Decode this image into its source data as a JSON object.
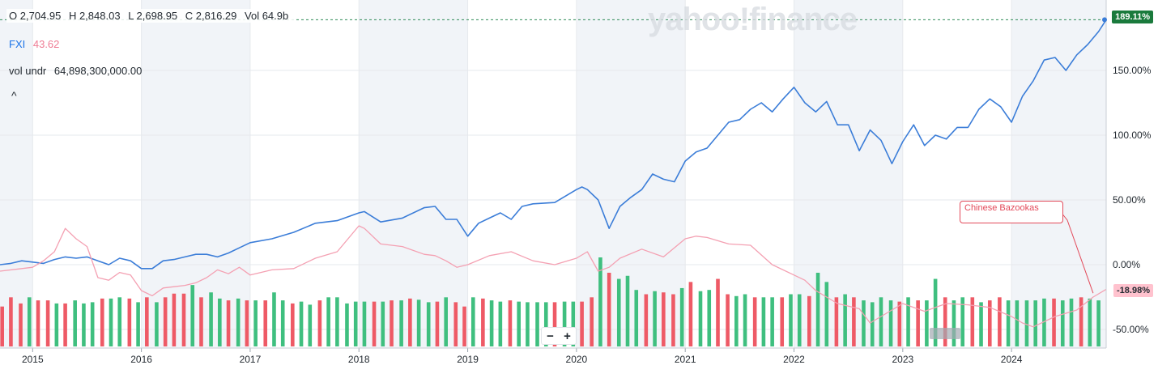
{
  "legend_ohlc": {
    "open": "O 2,704.95",
    "high": "H 2,848.03",
    "low": "L 2,698.95",
    "close": "C 2,816.29",
    "vol": "Vol 64.9b"
  },
  "symbol": {
    "name": "FXI",
    "price": "43.62"
  },
  "volume_legend": {
    "label": "vol undr",
    "value": "64,898,300,000.00"
  },
  "collapse_glyph": "^",
  "watermark": "yahoo!finance",
  "zoom": {
    "minus": "−",
    "plus": "+"
  },
  "annotation": {
    "text": "Chinese Bazookas"
  },
  "price_tags": {
    "main": "189.11%",
    "compare": "-18.98%"
  },
  "colors": {
    "main_line": "#3b7dd8",
    "compare_line": "#f4a0b2",
    "vol_up": "#3fbf7f",
    "vol_down": "#ee5a66",
    "band": "#f1f4f8",
    "tag_green": "#1a7a3c",
    "tag_pink": "#ffc2ce",
    "annotation": "#e34a5a"
  },
  "chart_data": {
    "type": "line",
    "y_axis": {
      "ticks": [
        "150.00%",
        "100.00%",
        "50.00%",
        "0.00%",
        "-50.00%"
      ],
      "tick_values": [
        150,
        100,
        50,
        0,
        -50
      ],
      "range": [
        -55,
        195
      ],
      "position": "right",
      "unit": "%"
    },
    "x_axis": {
      "tick_labels": [
        "2015",
        "2016",
        "2017",
        "2018",
        "2019",
        "2020",
        "2021",
        "2022",
        "2023",
        "2024"
      ],
      "range": [
        2014.7,
        2024.87
      ]
    },
    "grid": true,
    "series": [
      {
        "name": "",
        "style": "main",
        "x": [
          2014.7,
          2014.8,
          2014.9,
          2015.0,
          2015.1,
          2015.2,
          2015.3,
          2015.4,
          2015.5,
          2015.6,
          2015.7,
          2015.8,
          2015.9,
          2016.0,
          2016.1,
          2016.2,
          2016.3,
          2016.4,
          2016.5,
          2016.6,
          2016.7,
          2016.8,
          2016.9,
          2017.0,
          2017.2,
          2017.4,
          2017.6,
          2017.8,
          2018.0,
          2018.05,
          2018.2,
          2018.4,
          2018.6,
          2018.7,
          2018.8,
          2018.9,
          2019.0,
          2019.1,
          2019.2,
          2019.3,
          2019.4,
          2019.5,
          2019.6,
          2019.8,
          2020.0,
          2020.05,
          2020.1,
          2020.2,
          2020.3,
          2020.4,
          2020.5,
          2020.6,
          2020.7,
          2020.8,
          2020.9,
          2021.0,
          2021.1,
          2021.2,
          2021.3,
          2021.4,
          2021.5,
          2021.6,
          2021.7,
          2021.8,
          2021.9,
          2022.0,
          2022.1,
          2022.2,
          2022.3,
          2022.4,
          2022.5,
          2022.6,
          2022.7,
          2022.8,
          2022.9,
          2023.0,
          2023.1,
          2023.2,
          2023.3,
          2023.4,
          2023.5,
          2023.6,
          2023.7,
          2023.8,
          2023.9,
          2024.0,
          2024.1,
          2024.2,
          2024.3,
          2024.4,
          2024.5,
          2024.6,
          2024.7,
          2024.8,
          2024.87
        ],
        "values": [
          0,
          1,
          3,
          2,
          1,
          4,
          6,
          5,
          6,
          3,
          0,
          5,
          3,
          -3,
          -3,
          3,
          4,
          6,
          8,
          8,
          6,
          9,
          13,
          17,
          20,
          25,
          32,
          34,
          40,
          41,
          33,
          36,
          44,
          45,
          35,
          35,
          22,
          32,
          36,
          40,
          35,
          45,
          47,
          48,
          58,
          60,
          58,
          50,
          28,
          45,
          52,
          58,
          70,
          66,
          64,
          80,
          87,
          90,
          100,
          110,
          112,
          120,
          125,
          118,
          128,
          137,
          125,
          118,
          126,
          108,
          108,
          88,
          104,
          96,
          78,
          95,
          108,
          92,
          100,
          97,
          106,
          106,
          120,
          128,
          122,
          110,
          130,
          142,
          158,
          160,
          150,
          162,
          170,
          180,
          189.11
        ]
      },
      {
        "name": "",
        "style": "compare",
        "x": [
          2014.7,
          2014.9,
          2015.0,
          2015.1,
          2015.2,
          2015.3,
          2015.4,
          2015.5,
          2015.6,
          2015.7,
          2015.8,
          2015.9,
          2016.0,
          2016.1,
          2016.2,
          2016.3,
          2016.4,
          2016.5,
          2016.6,
          2016.7,
          2016.8,
          2016.9,
          2017.0,
          2017.2,
          2017.4,
          2017.6,
          2017.8,
          2018.0,
          2018.05,
          2018.2,
          2018.4,
          2018.6,
          2018.7,
          2018.8,
          2018.9,
          2019.0,
          2019.2,
          2019.4,
          2019.6,
          2019.8,
          2020.0,
          2020.1,
          2020.2,
          2020.3,
          2020.4,
          2020.6,
          2020.8,
          2021.0,
          2021.1,
          2021.2,
          2021.4,
          2021.6,
          2021.8,
          2022.0,
          2022.1,
          2022.2,
          2022.3,
          2022.4,
          2022.5,
          2022.6,
          2022.7,
          2022.8,
          2022.9,
          2023.0,
          2023.2,
          2023.4,
          2023.6,
          2023.8,
          2024.0,
          2024.1,
          2024.2,
          2024.4,
          2024.6,
          2024.75,
          2024.87
        ],
        "values": [
          -5,
          -3,
          -2,
          3,
          10,
          28,
          20,
          14,
          -10,
          -12,
          -6,
          -8,
          -20,
          -24,
          -18,
          -17,
          -16,
          -14,
          -10,
          -4,
          -7,
          -2,
          -8,
          -4,
          -3,
          5,
          10,
          30,
          28,
          16,
          14,
          8,
          7,
          3,
          -2,
          0,
          7,
          10,
          3,
          0,
          5,
          10,
          -5,
          -2,
          5,
          12,
          6,
          20,
          22,
          21,
          16,
          15,
          0,
          -8,
          -12,
          -20,
          -25,
          -30,
          -32,
          -34,
          -45,
          -40,
          -35,
          -30,
          -36,
          -30,
          -31,
          -33,
          -40,
          -45,
          -48,
          -40,
          -35,
          -25,
          -18.98
        ]
      }
    ],
    "volume": {
      "name": "vol undr",
      "x": [
        2014.72,
        2014.8,
        2014.89,
        2014.97,
        2015.05,
        2015.14,
        2015.22,
        2015.3,
        2015.39,
        2015.47,
        2015.55,
        2015.64,
        2015.72,
        2015.8,
        2015.89,
        2015.97,
        2016.05,
        2016.14,
        2016.22,
        2016.3,
        2016.39,
        2016.47,
        2016.55,
        2016.64,
        2016.72,
        2016.8,
        2016.89,
        2016.97,
        2017.05,
        2017.14,
        2017.22,
        2017.3,
        2017.39,
        2017.47,
        2017.55,
        2017.64,
        2017.72,
        2017.8,
        2017.89,
        2017.97,
        2018.05,
        2018.14,
        2018.22,
        2018.3,
        2018.39,
        2018.47,
        2018.55,
        2018.64,
        2018.72,
        2018.8,
        2018.89,
        2018.97,
        2019.05,
        2019.14,
        2019.22,
        2019.3,
        2019.39,
        2019.47,
        2019.55,
        2019.64,
        2019.72,
        2019.8,
        2019.89,
        2019.97,
        2020.05,
        2020.14,
        2020.22,
        2020.3,
        2020.39,
        2020.47,
        2020.55,
        2020.64,
        2020.72,
        2020.8,
        2020.89,
        2020.97,
        2021.05,
        2021.14,
        2021.22,
        2021.3,
        2021.39,
        2021.47,
        2021.55,
        2021.64,
        2021.72,
        2021.8,
        2021.89,
        2021.97,
        2022.05,
        2022.14,
        2022.22,
        2022.3,
        2022.39,
        2022.47,
        2022.55,
        2022.64,
        2022.72,
        2022.8,
        2022.89,
        2022.97,
        2023.05,
        2023.14,
        2023.22,
        2023.3,
        2023.39,
        2023.47,
        2023.55,
        2023.64,
        2023.72,
        2023.8,
        2023.89,
        2023.97,
        2024.05,
        2024.14,
        2024.22,
        2024.3,
        2024.39,
        2024.47,
        2024.55,
        2024.64,
        2024.72,
        2024.8
      ],
      "values": [
        0.65,
        0.8,
        0.7,
        0.8,
        0.75,
        0.75,
        0.7,
        0.7,
        0.75,
        0.7,
        0.72,
        0.78,
        0.78,
        0.8,
        0.78,
        0.72,
        0.8,
        0.72,
        0.8,
        0.86,
        0.86,
        1.0,
        0.8,
        0.88,
        0.78,
        0.75,
        0.78,
        0.75,
        0.75,
        0.75,
        0.88,
        0.75,
        0.7,
        0.73,
        0.68,
        0.75,
        0.8,
        0.8,
        0.7,
        0.73,
        0.73,
        0.73,
        0.73,
        0.75,
        0.75,
        0.78,
        0.76,
        0.72,
        0.73,
        0.8,
        0.72,
        0.65,
        0.8,
        0.78,
        0.75,
        0.73,
        0.75,
        0.73,
        0.72,
        0.72,
        0.72,
        0.72,
        0.73,
        0.73,
        0.73,
        0.8,
        1.45,
        1.2,
        1.1,
        1.15,
        0.92,
        0.85,
        0.9,
        0.88,
        0.85,
        0.95,
        1.05,
        0.9,
        0.92,
        1.1,
        0.85,
        0.82,
        0.85,
        0.8,
        0.8,
        0.8,
        0.8,
        0.85,
        0.85,
        0.82,
        1.2,
        1.05,
        0.8,
        0.85,
        0.8,
        0.75,
        0.72,
        0.8,
        0.75,
        0.73,
        0.8,
        0.75,
        0.75,
        1.1,
        0.8,
        0.75,
        0.8,
        0.8,
        0.72,
        0.75,
        0.8,
        0.75,
        0.75,
        0.75,
        0.75,
        0.78,
        0.78,
        0.75,
        0.78,
        0.8,
        0.78,
        0.75
      ],
      "up": [
        false,
        false,
        false,
        true,
        false,
        false,
        true,
        false,
        true,
        true,
        true,
        false,
        true,
        true,
        false,
        true,
        false,
        true,
        false,
        false,
        false,
        true,
        false,
        true,
        true,
        false,
        true,
        false,
        true,
        false,
        true,
        true,
        false,
        true,
        true,
        false,
        true,
        true,
        true,
        true,
        true,
        false,
        true,
        false,
        true,
        false,
        true,
        true,
        false,
        true,
        false,
        false,
        true,
        false,
        true,
        true,
        false,
        true,
        true,
        true,
        true,
        false,
        true,
        true,
        false,
        false,
        true,
        false,
        true,
        true,
        true,
        false,
        true,
        false,
        false,
        true,
        false,
        true,
        true,
        false,
        false,
        true,
        true,
        false,
        true,
        true,
        false,
        true,
        true,
        false,
        true,
        true,
        false,
        true,
        false,
        true,
        true,
        true,
        true,
        false,
        true,
        false,
        true,
        true,
        false,
        true,
        true,
        false,
        true,
        false,
        false,
        true,
        true,
        true,
        true,
        true,
        false,
        true,
        true,
        false,
        true,
        true
      ]
    },
    "shaded_years": [
      [
        2014.7,
        2015.0
      ],
      [
        2016.0,
        2017.0
      ],
      [
        2018.0,
        2019.0
      ],
      [
        2020.0,
        2021.0
      ],
      [
        2022.0,
        2023.0
      ],
      [
        2024.0,
        2024.87
      ]
    ],
    "annotations": [
      {
        "text": "Chinese Bazookas",
        "target_x": 2024.75,
        "target_y": -22
      }
    ],
    "last_values": {
      "main": 189.11,
      "compare": -18.98
    }
  }
}
